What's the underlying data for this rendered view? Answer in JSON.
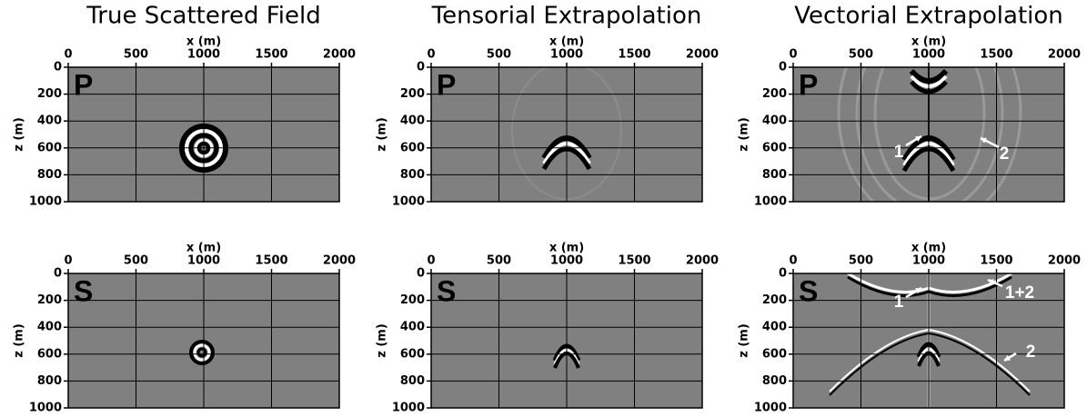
{
  "chart_data": [
    {
      "type": "image",
      "title": "True Scattered Field",
      "xlabel": "x (m)",
      "ylabel": "z (m)",
      "label": "P",
      "xlim": [
        0,
        2000
      ],
      "ylim": [
        1000,
        0
      ],
      "xticks": [
        0,
        500,
        1000,
        1500,
        2000
      ],
      "yticks": [
        0,
        200,
        400,
        600,
        800,
        1000
      ],
      "grid": true,
      "annotations": []
    },
    {
      "type": "image",
      "title": "Tensorial Extrapolation",
      "xlabel": "x (m)",
      "ylabel": "z (m)",
      "label": "P",
      "xlim": [
        0,
        2000
      ],
      "ylim": [
        1000,
        0
      ],
      "xticks": [
        0,
        500,
        1000,
        1500,
        2000
      ],
      "yticks": [
        0,
        200,
        400,
        600,
        800,
        1000
      ],
      "grid": true,
      "annotations": []
    },
    {
      "type": "image",
      "title": "Vectorial Extrapolation",
      "xlabel": "x (m)",
      "ylabel": "z (m)",
      "label": "P",
      "xlim": [
        0,
        2000
      ],
      "ylim": [
        1000,
        0
      ],
      "xticks": [
        0,
        500,
        1000,
        1500,
        2000
      ],
      "yticks": [
        0,
        200,
        400,
        600,
        800,
        1000
      ],
      "grid": true,
      "annotations": [
        "1",
        "2"
      ]
    },
    {
      "type": "image",
      "xlabel": "x (m)",
      "ylabel": "z (m)",
      "label": "S",
      "xlim": [
        0,
        2000
      ],
      "ylim": [
        1000,
        0
      ],
      "xticks": [
        0,
        500,
        1000,
        1500,
        2000
      ],
      "yticks": [
        0,
        200,
        400,
        600,
        800,
        1000
      ],
      "grid": true,
      "annotations": []
    },
    {
      "type": "image",
      "xlabel": "x (m)",
      "ylabel": "z (m)",
      "label": "S",
      "xlim": [
        0,
        2000
      ],
      "ylim": [
        1000,
        0
      ],
      "xticks": [
        0,
        500,
        1000,
        1500,
        2000
      ],
      "yticks": [
        0,
        200,
        400,
        600,
        800,
        1000
      ],
      "grid": true,
      "annotations": []
    },
    {
      "type": "image",
      "xlabel": "x (m)",
      "ylabel": "z (m)",
      "label": "S",
      "xlim": [
        0,
        2000
      ],
      "ylim": [
        1000,
        0
      ],
      "xticks": [
        0,
        500,
        1000,
        1500,
        2000
      ],
      "yticks": [
        0,
        200,
        400,
        600,
        800,
        1000
      ],
      "grid": true,
      "annotations": [
        "1",
        "1+2",
        "2"
      ]
    }
  ]
}
